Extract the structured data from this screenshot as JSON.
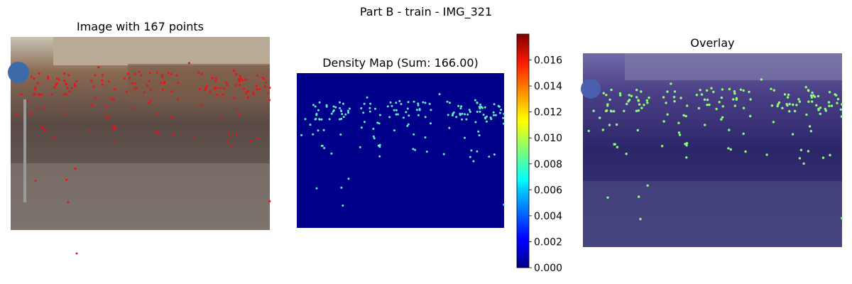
{
  "figure": {
    "suptitle": "Part B - train - IMG_321"
  },
  "panels": {
    "image": {
      "title": "Image with 167 points",
      "point_color": "#e8141b"
    },
    "density": {
      "title": "Density Map (Sum: 166.00)",
      "background_color": "#00008b",
      "dot_color": "#62f0c8"
    },
    "overlay": {
      "title": "Overlay",
      "dot_color": "#8dfc7a"
    }
  },
  "chart_data": {
    "type": "heatmap",
    "title": "Density Map (Sum: 166.00)",
    "colormap": "jet",
    "colorbar": {
      "vmin": 0.0,
      "vmax": 0.018,
      "ticks": [
        0.0,
        0.002,
        0.004,
        0.006,
        0.008,
        0.01,
        0.012,
        0.014,
        0.016
      ],
      "tick_labels": [
        "0.000",
        "0.002",
        "0.004",
        "0.006",
        "0.008",
        "0.010",
        "0.012",
        "0.014",
        "0.016"
      ]
    },
    "density_sum": 166.0,
    "point_count": 167
  }
}
